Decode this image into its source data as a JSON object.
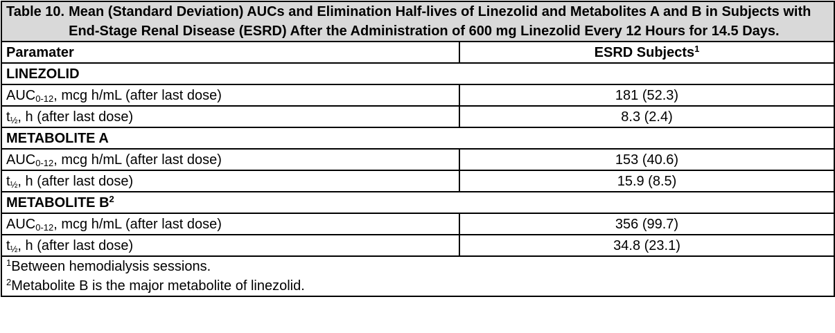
{
  "caption": {
    "number": "Table 10.",
    "text": "Mean (Standard Deviation) AUCs and Elimination Half-lives of Linezolid and Metabolites A and B in Subjects with End-Stage Renal Disease (ESRD) After the Administration of 600 mg Linezolid Every 12 Hours for 14.5 Days."
  },
  "header": {
    "col1": "Paramater",
    "col2": "ESRD Subjects",
    "col2_sup": "1"
  },
  "sections": [
    {
      "title": "LINEZOLID",
      "title_sup": "",
      "rows": [
        {
          "label_pre": "AUC",
          "label_sub": "0-12",
          "label_post": ", mcg h/mL (after last dose)",
          "value": "181 (52.3)"
        },
        {
          "label_pre": "t",
          "label_sub": "½",
          "label_post": ", h (after last dose)",
          "value": "8.3 (2.4)"
        }
      ]
    },
    {
      "title": "METABOLITE A",
      "title_sup": "",
      "rows": [
        {
          "label_pre": "AUC",
          "label_sub": "0-12",
          "label_post": ", mcg h/mL (after last dose)",
          "value": "153 (40.6)"
        },
        {
          "label_pre": "t",
          "label_sub": "½",
          "label_post": ", h (after last dose)",
          "value": "15.9 (8.5)"
        }
      ]
    },
    {
      "title": "METABOLITE B",
      "title_sup": "2",
      "rows": [
        {
          "label_pre": "AUC",
          "label_sub": "0-12",
          "label_post": ", mcg h/mL (after last dose)",
          "value": "356 (99.7)"
        },
        {
          "label_pre": "t",
          "label_sub": "½",
          "label_post": ", h (after last dose)",
          "value": "34.8 (23.1)"
        }
      ]
    }
  ],
  "footnotes": [
    {
      "mark": "1",
      "text": "Between hemodialysis sessions."
    },
    {
      "mark": "2",
      "text": "Metabolite B is the major metabolite of linezolid."
    }
  ]
}
